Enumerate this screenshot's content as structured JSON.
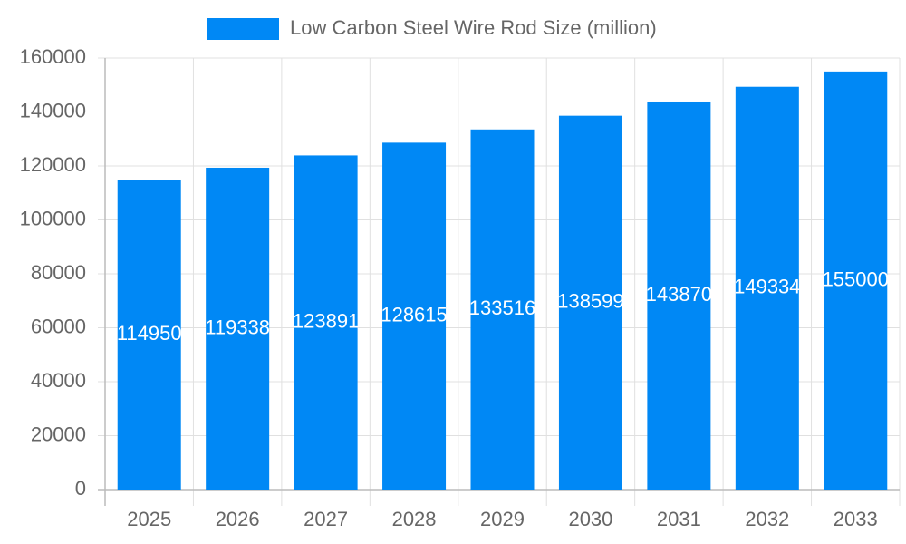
{
  "chart_data": {
    "type": "bar",
    "categories": [
      "2025",
      "2026",
      "2027",
      "2028",
      "2029",
      "2030",
      "2031",
      "2032",
      "2033"
    ],
    "series": [
      {
        "name": "Low Carbon Steel Wire Rod Size (million)",
        "color": "#0088f5",
        "values": [
          114950,
          119338,
          123891,
          128615,
          133516,
          138599,
          143870,
          149334,
          155000
        ]
      }
    ],
    "ylim": [
      0,
      160000
    ],
    "yticks": [
      0,
      20000,
      40000,
      60000,
      80000,
      100000,
      120000,
      140000,
      160000
    ],
    "grid": true,
    "legend": "top"
  }
}
